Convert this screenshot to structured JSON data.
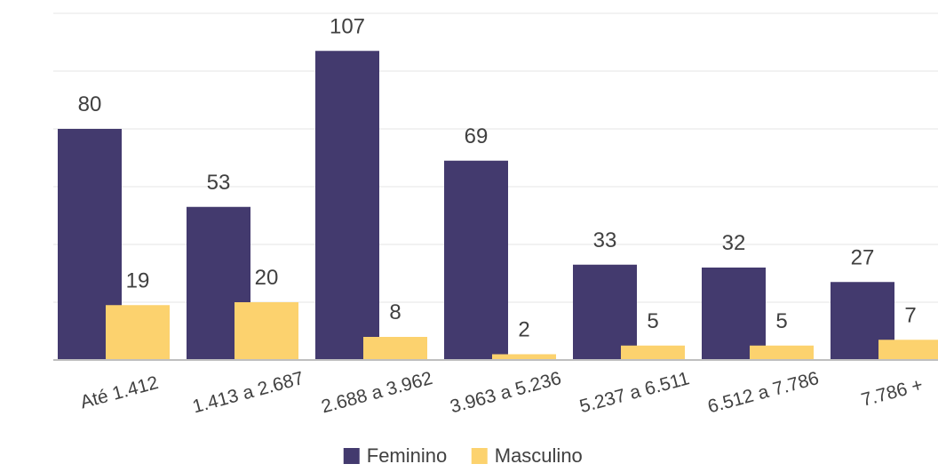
{
  "chart_data": {
    "type": "bar",
    "categories": [
      "Até 1.412",
      "1.413 a 2.687",
      "2.688 a 3.962",
      "3.963 a 5.236",
      "5.237 a 6.511",
      "6.512 a 7.786",
      "7.786 +"
    ],
    "series": [
      {
        "name": "Feminino",
        "values": [
          80,
          53,
          107,
          69,
          33,
          32,
          27
        ],
        "color": "#433a6e"
      },
      {
        "name": "Masculino",
        "values": [
          19,
          20,
          8,
          2,
          5,
          5,
          7
        ],
        "color": "#fcd26e"
      }
    ],
    "ylim": [
      0,
      120
    ],
    "grid": true,
    "legend_position": "bottom",
    "data_labels": true,
    "title": "",
    "xlabel": "",
    "ylabel": ""
  }
}
